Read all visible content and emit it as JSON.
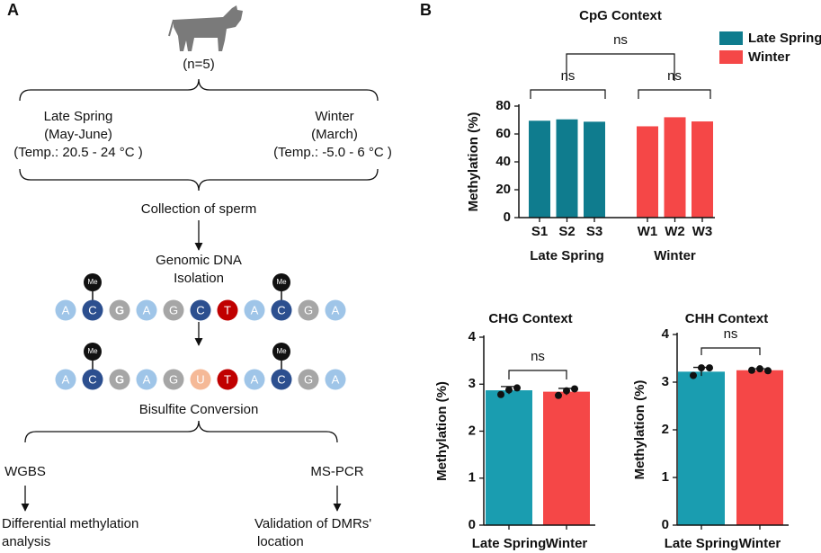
{
  "panel_a": {
    "label": "A",
    "group": "(n=5)",
    "season1": {
      "name": "Late Spring",
      "months": "(May-June)",
      "temp": "(Temp.: 20.5 - 24 °C )"
    },
    "season2": {
      "name": "Winter",
      "months": "(March)",
      "temp": "(Temp.: -5.0 - 6 °C )"
    },
    "collection": "Collection of sperm",
    "isolation": [
      "Genomic DNA",
      "Isolation"
    ],
    "methyl_label": "Me",
    "base_colors": {
      "A": "#9fc5e8",
      "C": "#2c4f8f",
      "G": "#a6a6a6",
      "T": "#c00000",
      "U": "#f5b997"
    },
    "sequence1": [
      "A",
      "C",
      "G",
      "A",
      "G",
      "C",
      "T",
      "A",
      "C",
      "G",
      "A"
    ],
    "sequence2": [
      "A",
      "C",
      "G",
      "A",
      "G",
      "U",
      "T",
      "A",
      "C",
      "G",
      "A"
    ],
    "conversion": "Bisulfite Conversion",
    "method1": "WGBS",
    "method2": "MS-PCR",
    "result1": [
      "Differential methylation",
      "analysis"
    ],
    "result2": [
      "Validation of DMRs'",
      "location"
    ]
  },
  "panel_b_label": "B",
  "chart_data": [
    {
      "type": "bar",
      "title": "CpG Context",
      "ylabel": "Methylation (%)",
      "categories": [
        "S1",
        "S2",
        "S3",
        "W1",
        "W2",
        "W3"
      ],
      "series": [
        {
          "name": "Late Spring",
          "color": "#0f7c8e",
          "values": [
            69.5,
            70.5,
            68.8,
            null,
            null,
            null
          ]
        },
        {
          "name": "Winter",
          "color": "#f54747",
          "values": [
            null,
            null,
            null,
            65.5,
            72,
            69
          ]
        }
      ],
      "ylim": [
        0,
        80
      ],
      "yticks": [
        0,
        20,
        40,
        60,
        80
      ],
      "annotations": [
        "ns",
        "ns",
        "ns"
      ]
    },
    {
      "type": "bar",
      "title": "CHG  Context",
      "ylabel": "Methylation (%)",
      "categories": [
        "Late Spring",
        "Winter"
      ],
      "values": [
        2.87,
        2.84
      ],
      "errors": [
        0.08,
        0.07
      ],
      "points": [
        [
          2.78,
          2.88,
          2.92
        ],
        [
          2.76,
          2.86,
          2.9
        ]
      ],
      "colors": [
        "#1a9db0",
        "#f54747"
      ],
      "ylim": [
        0,
        4
      ],
      "yticks": [
        0,
        1,
        2,
        3,
        4
      ],
      "annotations": [
        "ns"
      ]
    },
    {
      "type": "bar",
      "title": "CHH Context",
      "ylabel": "Methylation (%)",
      "categories": [
        "Late Spring",
        "Winter"
      ],
      "values": [
        3.22,
        3.25
      ],
      "errors": [
        0.09,
        0.03
      ],
      "points": [
        [
          3.14,
          3.3,
          3.3
        ],
        [
          3.25,
          3.28,
          3.24
        ]
      ],
      "colors": [
        "#1a9db0",
        "#f54747"
      ],
      "ylim": [
        0,
        4
      ],
      "yticks": [
        0,
        1,
        2,
        3,
        4
      ],
      "annotations": [
        "ns"
      ]
    }
  ]
}
